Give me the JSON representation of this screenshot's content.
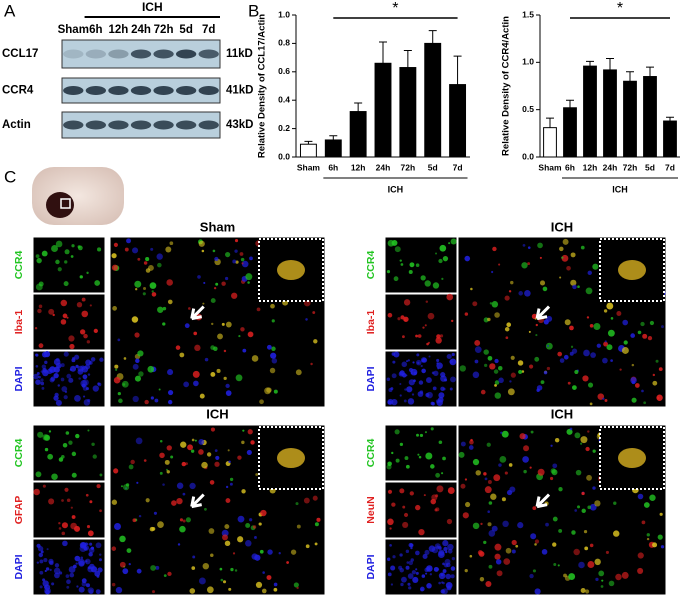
{
  "panel_a": {
    "label": "A",
    "group": "ICH",
    "lanes": [
      "Sham",
      "6h",
      "12h",
      "24h",
      "72h",
      "5d",
      "7d"
    ],
    "rows": [
      {
        "name": "CCL17",
        "size": "11kD"
      },
      {
        "name": "CCR4",
        "size": "41kD"
      },
      {
        "name": "Actin",
        "size": "43kD"
      }
    ]
  },
  "panel_b": {
    "label": "B"
  },
  "chart_data": [
    {
      "type": "bar",
      "ylabel": "Relative Density of CCL17/Actin",
      "group_label": "ICH",
      "significance": "*",
      "color": "#000000",
      "categories": [
        "Sham",
        "6h",
        "12h",
        "24h",
        "72h",
        "5d",
        "7d"
      ],
      "values": [
        0.09,
        0.12,
        0.32,
        0.66,
        0.63,
        0.8,
        0.51
      ],
      "errors": [
        0.02,
        0.03,
        0.06,
        0.15,
        0.12,
        0.09,
        0.2
      ],
      "ylim": [
        0,
        1.0
      ],
      "yticks": [
        {
          "value": 0,
          "label": "0.0"
        },
        0.2,
        0.4,
        0.6,
        0.8,
        {
          "value": 1,
          "label": "1.0"
        }
      ]
    },
    {
      "type": "bar",
      "ylabel": "Relative Density of CCR4/Actin",
      "group_label": "ICH",
      "significance": "*",
      "color": "#000000",
      "categories": [
        "Sham",
        "6h",
        "12h",
        "24h",
        "72h",
        "5d",
        "7d"
      ],
      "values": [
        0.31,
        0.52,
        0.96,
        0.92,
        0.8,
        0.85,
        0.38
      ],
      "errors": [
        0.1,
        0.08,
        0.05,
        0.12,
        0.1,
        0.1,
        0.04
      ],
      "ylim": [
        0,
        1.5
      ],
      "yticks": [
        {
          "value": 0,
          "label": "0.0"
        },
        0.5,
        {
          "value": 1,
          "label": "1.0"
        },
        1.5
      ]
    }
  ],
  "panel_c": {
    "label": "C",
    "sections": [
      {
        "title": "Sham",
        "channels": [
          {
            "name": "CCR4",
            "color": "#22c522"
          },
          {
            "name": "Iba-1",
            "color": "#e02020"
          },
          {
            "name": "DAPI",
            "color": "#2020e0"
          }
        ]
      },
      {
        "title": "ICH",
        "channels": [
          {
            "name": "CCR4",
            "color": "#22c522"
          },
          {
            "name": "Iba-1",
            "color": "#e02020"
          },
          {
            "name": "DAPI",
            "color": "#2020e0"
          }
        ]
      },
      {
        "title": "ICH",
        "channels": [
          {
            "name": "CCR4",
            "color": "#22c522"
          },
          {
            "name": "GFAP",
            "color": "#e02020"
          },
          {
            "name": "DAPI",
            "color": "#2020e0"
          }
        ]
      },
      {
        "title": "ICH",
        "channels": [
          {
            "name": "CCR4",
            "color": "#22c522"
          },
          {
            "name": "NeuN",
            "color": "#e02020"
          },
          {
            "name": "DAPI",
            "color": "#2020e0"
          }
        ]
      }
    ]
  }
}
